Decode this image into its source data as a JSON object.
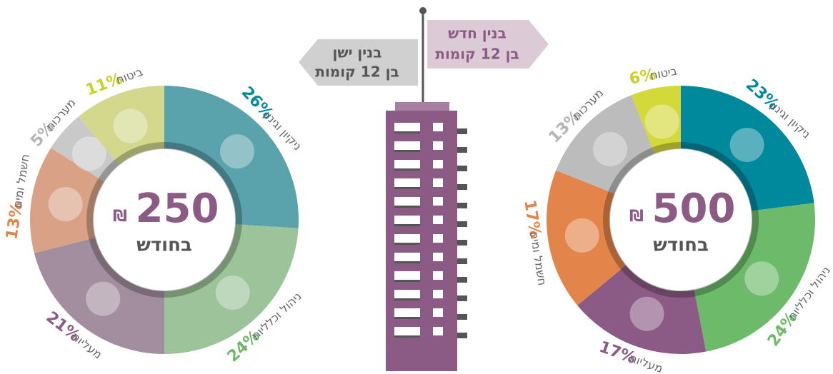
{
  "chart_data": [
    {
      "type": "pie",
      "center_value": "250",
      "currency": "₪",
      "center_label": "בחודש",
      "categories": [
        "ניקיון וגינון",
        "ניהול וכלליות",
        "מעליות",
        "חשמל ומים",
        "מערכות",
        "ביטוח"
      ],
      "values": [
        26,
        24,
        21,
        13,
        5,
        11
      ],
      "value_labels": [
        "26%",
        "24%",
        "21%",
        "13%",
        "5%",
        "11%"
      ],
      "colors": [
        "#5aa2ac",
        "#9cc39a",
        "#a38e9f",
        "#d9a287",
        "#c9c9c9",
        "#d3d88c"
      ],
      "label_colors": [
        "#00889c",
        "#6dbb6a",
        "#8b5a85",
        "#e3844a",
        "#b5b5b5",
        "#c9d12a"
      ]
    },
    {
      "type": "pie",
      "center_value": "500",
      "currency": "₪",
      "center_label": "בחודש",
      "categories": [
        "ניקיון וגינון",
        "ניהול וכלליות",
        "מעליות",
        "חשמל ומים",
        "מערכות",
        "ביטוח"
      ],
      "values": [
        23,
        24,
        17,
        17,
        13,
        6
      ],
      "value_labels": [
        "23%",
        "24%",
        "17%",
        "17%",
        "13%",
        "6%"
      ],
      "colors": [
        "#00889c",
        "#6dbb6a",
        "#8b5a85",
        "#e3844a",
        "#bcbcbc",
        "#d4d93a"
      ],
      "label_colors": [
        "#00889c",
        "#6dbb6a",
        "#8b5a85",
        "#e3844a",
        "#b5b5b5",
        "#c9d12a"
      ]
    }
  ],
  "signs": {
    "old": {
      "title": "בנין ישן",
      "subtitle": "בן 12 קומות"
    },
    "new": {
      "title": "בנין חדש",
      "subtitle": "בן 12 קומות"
    }
  }
}
